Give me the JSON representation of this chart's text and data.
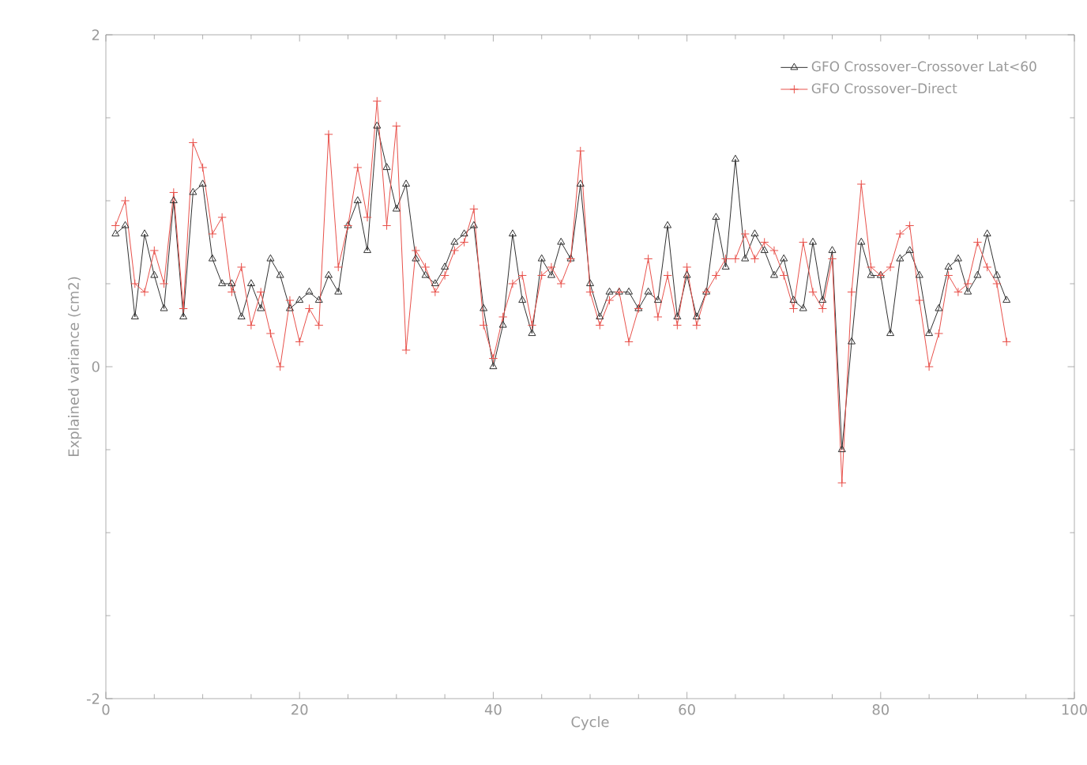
{
  "chart_data": {
    "type": "line",
    "xlabel": "Cycle",
    "ylabel": "Explained variance (cm2)",
    "x": [
      1,
      2,
      3,
      4,
      5,
      6,
      7,
      8,
      9,
      10,
      11,
      12,
      13,
      14,
      15,
      16,
      17,
      18,
      19,
      20,
      21,
      22,
      23,
      24,
      25,
      26,
      27,
      28,
      29,
      30,
      31,
      32,
      33,
      34,
      35,
      36,
      37,
      38,
      39,
      40,
      41,
      42,
      43,
      44,
      45,
      46,
      47,
      48,
      49,
      50,
      51,
      52,
      53,
      54,
      55,
      56,
      57,
      58,
      59,
      60,
      61,
      62,
      63,
      64,
      65,
      66,
      67,
      68,
      69,
      70,
      71,
      72,
      73,
      74,
      75,
      76,
      77,
      78,
      79,
      80,
      81,
      82,
      83,
      84,
      85,
      86,
      87,
      88,
      89,
      90,
      91,
      92,
      93
    ],
    "xlim": [
      0,
      100
    ],
    "xticks": [
      0,
      20,
      40,
      60,
      80,
      100
    ],
    "ylim": [
      -2,
      2
    ],
    "yticks": [
      -2,
      0,
      2
    ],
    "grid": false,
    "legend": "top right",
    "line_style": "solid",
    "series": [
      {
        "name": "GFO Crossover–Crossover Lat<60",
        "color": "#303030",
        "marker": "triangle",
        "values": [
          0.8,
          0.85,
          0.3,
          0.8,
          0.55,
          0.35,
          1.0,
          0.3,
          1.05,
          1.1,
          0.65,
          0.5,
          0.5,
          0.3,
          0.5,
          0.35,
          0.65,
          0.55,
          0.35,
          0.4,
          0.45,
          0.4,
          0.55,
          0.45,
          0.85,
          1.0,
          0.7,
          1.45,
          1.2,
          0.95,
          1.1,
          0.65,
          0.55,
          0.5,
          0.6,
          0.75,
          0.8,
          0.85,
          0.35,
          0.0,
          0.25,
          0.8,
          0.4,
          0.2,
          0.65,
          0.55,
          0.75,
          0.65,
          1.1,
          0.5,
          0.3,
          0.45,
          0.45,
          0.45,
          0.35,
          0.45,
          0.4,
          0.85,
          0.3,
          0.55,
          0.3,
          0.45,
          0.9,
          0.6,
          1.25,
          0.65,
          0.8,
          0.7,
          0.55,
          0.65,
          0.4,
          0.35,
          0.75,
          0.4,
          0.7,
          -0.5,
          0.15,
          0.75,
          0.55,
          0.55,
          0.2,
          0.65,
          0.7,
          0.55,
          0.2,
          0.35,
          0.6,
          0.65,
          0.45,
          0.55,
          0.8,
          0.55,
          0.4
        ]
      },
      {
        "name": "GFO Crossover–Direct",
        "color": "#e8504a",
        "marker": "cross",
        "values": [
          0.85,
          1.0,
          0.5,
          0.45,
          0.7,
          0.5,
          1.05,
          0.35,
          1.35,
          1.2,
          0.8,
          0.9,
          0.45,
          0.6,
          0.25,
          0.45,
          0.2,
          0.0,
          0.4,
          0.15,
          0.35,
          0.25,
          1.4,
          0.6,
          0.85,
          1.2,
          0.9,
          1.6,
          0.85,
          1.45,
          0.1,
          0.7,
          0.6,
          0.45,
          0.55,
          0.7,
          0.75,
          0.95,
          0.25,
          0.05,
          0.3,
          0.5,
          0.55,
          0.25,
          0.55,
          0.6,
          0.5,
          0.65,
          1.3,
          0.45,
          0.25,
          0.4,
          0.45,
          0.15,
          0.35,
          0.65,
          0.3,
          0.55,
          0.25,
          0.6,
          0.25,
          0.45,
          0.55,
          0.65,
          0.65,
          0.8,
          0.65,
          0.75,
          0.7,
          0.55,
          0.35,
          0.75,
          0.45,
          0.35,
          0.65,
          -0.7,
          0.45,
          1.1,
          0.6,
          0.55,
          0.6,
          0.8,
          0.85,
          0.4,
          0.0,
          0.2,
          0.55,
          0.45,
          0.5,
          0.75,
          0.6,
          0.5,
          0.15
        ]
      }
    ]
  }
}
